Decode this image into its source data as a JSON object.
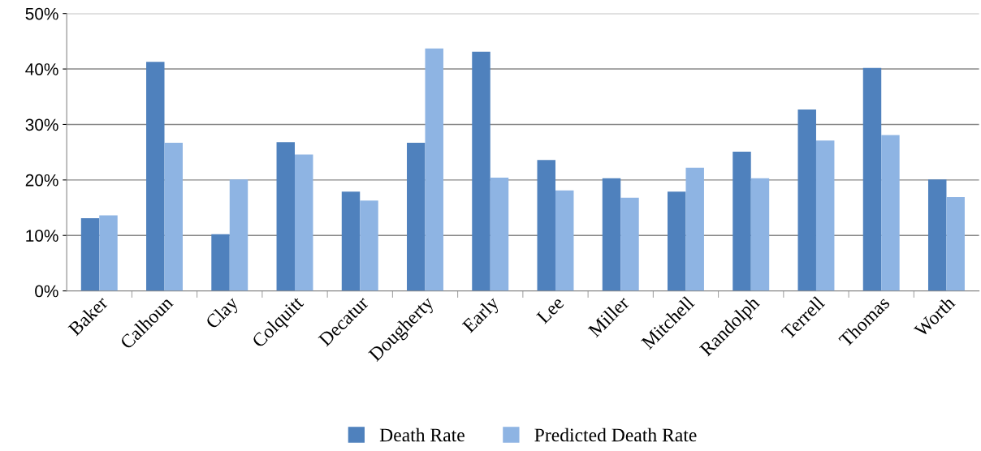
{
  "chart_data": {
    "type": "bar",
    "categories": [
      "Baker",
      "Calhoun",
      "Clay",
      "Colquitt",
      "Decatur",
      "Dougherty",
      "Early",
      "Lee",
      "Miller",
      "Mitchell",
      "Randolph",
      "Terrell",
      "Thomas",
      "Worth"
    ],
    "series": [
      {
        "name": "Death Rate",
        "color": "#4f81bd",
        "values": [
          13.1,
          41.3,
          10.2,
          26.8,
          17.9,
          26.7,
          43.1,
          23.6,
          20.3,
          17.9,
          25.1,
          32.7,
          40.2,
          20.1
        ]
      },
      {
        "name": "Predicted Death Rate",
        "color": "#8eb4e3",
        "values": [
          13.6,
          26.7,
          20.1,
          24.6,
          16.3,
          43.7,
          20.4,
          18.1,
          16.8,
          22.2,
          20.3,
          27.1,
          28.1,
          16.9
        ]
      }
    ],
    "ylim": [
      0,
      50
    ],
    "yticks": [
      {
        "value": 0,
        "label": "0%"
      },
      {
        "value": 10,
        "label": "10%"
      },
      {
        "value": 20,
        "label": "20%"
      },
      {
        "value": 30,
        "label": "30%"
      },
      {
        "value": 40,
        "label": "40%"
      },
      {
        "value": 50,
        "label": "50%"
      }
    ],
    "grid": "y",
    "legend": "bottom"
  }
}
